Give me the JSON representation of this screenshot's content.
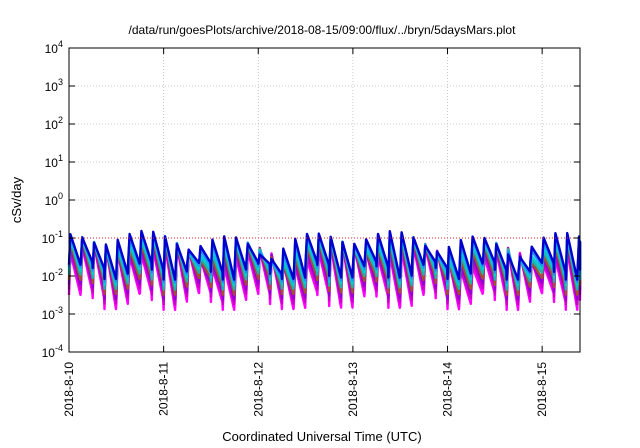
{
  "chart_data": {
    "type": "line",
    "title": "/data/run/goesPlots/archive/2018-08-15/09:00/flux/../bryn/5daysMars.plot",
    "xlabel": "Coordinated Universal Time (UTC)",
    "ylabel": "cSv/day",
    "y_scale": "log",
    "ylim": [
      0.0001,
      10000
    ],
    "y_ticks": [
      {
        "base": "10",
        "exp": "-4"
      },
      {
        "base": "10",
        "exp": "-3"
      },
      {
        "base": "10",
        "exp": "-2"
      },
      {
        "base": "10",
        "exp": "-1"
      },
      {
        "base": "10",
        "exp": "0"
      },
      {
        "base": "10",
        "exp": "1"
      },
      {
        "base": "10",
        "exp": "2"
      },
      {
        "base": "10",
        "exp": "3"
      },
      {
        "base": "10",
        "exp": "4"
      }
    ],
    "x_ticks": [
      "2018-8-10",
      "2018-8-11",
      "2018-8-12",
      "2018-8-13",
      "2018-8-14",
      "2018-8-15"
    ],
    "xlim_days": [
      0,
      5.4
    ],
    "grid": true,
    "legend": "none",
    "threshold_line": {
      "value": 0.1,
      "color": "#e02020",
      "style": "dotted"
    },
    "cycle_hours": 3,
    "series": [
      {
        "color": "#ff00ff",
        "peak": 0.055,
        "trough": 0.0032
      },
      {
        "color": "#cc00cc",
        "peak": 0.06,
        "trough": 0.0045
      },
      {
        "color": "#9400d3",
        "peak": 0.07,
        "trough": 0.006
      },
      {
        "color": "#a0522d",
        "peak": 0.075,
        "trough": 0.008
      },
      {
        "color": "#20b2aa",
        "peak": 0.085,
        "trough": 0.011
      },
      {
        "color": "#00ced1",
        "peak": 0.095,
        "trough": 0.014
      },
      {
        "color": "#1e90ff",
        "peak": 0.11,
        "trough": 0.017
      },
      {
        "color": "#0000cd",
        "peak": 0.12,
        "trough": 0.02
      }
    ]
  }
}
